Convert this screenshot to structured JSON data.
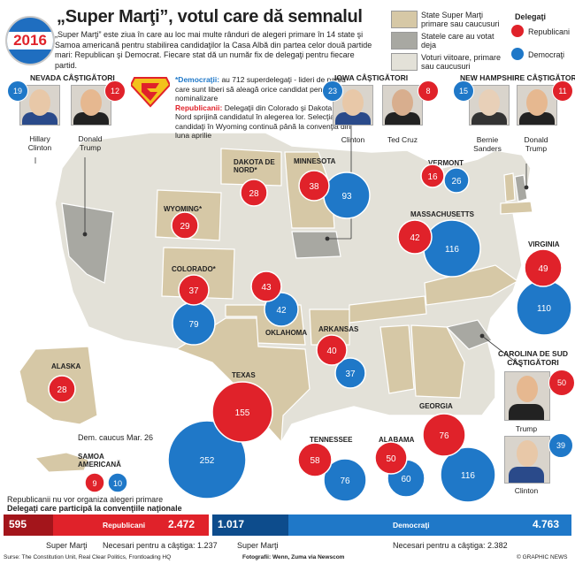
{
  "header": {
    "year_badge": "2016",
    "title": "„Super Marţi”, votul care dă semnalul",
    "intro": "„Super Marţi” este ziua în care au loc mai multe rânduri de alegeri primare în 14 state şi Samoa americană pentru stabilirea candidaţilor la Casa Albă din partea celor două partide mari: Republican şi Democrat. Fiecare stat dă un număr fix de delegaţi pentru fiecare partid."
  },
  "legend": {
    "states": [
      {
        "label": "State Super Marţi primare sau caucusuri",
        "color": "#d6c8a6"
      },
      {
        "label": "Statele care au votat deja",
        "color": "#a8a8a2"
      },
      {
        "label": "Voturi viitoare, primare sau caucusuri",
        "color": "#e3e1d8"
      }
    ],
    "delegates_title": "Delegaţi",
    "republicans": "Republicani",
    "democrats": "Democraţi",
    "rep_color": "#e0222a",
    "dem_color": "#1f78c8"
  },
  "notes": {
    "dem_label": "*Democraţii:",
    "dem_text": "au 712 superdelegaţi - lideri de partid care sunt liberi să aleagă orice candidat pentru nominalizare",
    "rep_label": "Republicanii:",
    "rep_text": "Delegaţii din Colorado şi Dakota de Nord sprijină candidatul în alegerea lor. Selecţia de candidaţi în Wyoming continuă până la convenţia din luna aprilie"
  },
  "winners": {
    "nevada": {
      "header": "NEVADA CÂŞTIGĂTORI",
      "dem_num": "19",
      "rep_num": "12",
      "dem_name": "Hillary Clinton",
      "rep_name": "Donald Trump"
    },
    "iowa": {
      "header": "IOWA CÂŞTIGĂTORI",
      "dem_num": "23",
      "rep_num": "8",
      "dem_name": "Clinton",
      "rep_name": "Ted Cruz"
    },
    "nh": {
      "header": "NEW HAMPSHIRE CÂŞTIGĂTORI",
      "dem_num": "15",
      "rep_num": "11",
      "dem_name": "Bernie Sanders",
      "rep_name": "Donald Trump"
    },
    "sc": {
      "header": "CAROLINA DE SUD CÂŞTIGĂTORI",
      "rep_num": "50",
      "rep_name": "Trump",
      "dem_num": "39",
      "dem_name": "Clinton"
    }
  },
  "states": {
    "dakota": {
      "name": "DAKOTA DE NORD*",
      "rep": "28"
    },
    "minnesota": {
      "name": "MINNESOTA",
      "rep": "38",
      "dem": "93"
    },
    "vermont": {
      "name": "VERMONT",
      "rep": "16",
      "dem": "26"
    },
    "wyoming": {
      "name": "WYOMING*",
      "rep": "29"
    },
    "massachusetts": {
      "name": "MASSACHUSETTS",
      "rep": "42",
      "dem": "116"
    },
    "colorado": {
      "name": "COLORADO*",
      "rep": "37",
      "dem": "79"
    },
    "oklahoma": {
      "name": "OKLAHOMA",
      "rep": "43",
      "dem": "42"
    },
    "virginia": {
      "name": "VIRGINIA",
      "rep": "49",
      "dem": "110"
    },
    "arkansas": {
      "name": "ARKANSAS",
      "rep": "40",
      "dem": "37"
    },
    "alaska": {
      "name": "ALASKA",
      "rep": "28",
      "note": "Dem. caucus Mar. 26"
    },
    "texas": {
      "name": "TEXAS",
      "rep": "155",
      "dem": "252"
    },
    "tennessee": {
      "name": "TENNESSEE",
      "rep": "58",
      "dem": "76"
    },
    "alabama": {
      "name": "ALABAMA",
      "rep": "50",
      "dem": "60"
    },
    "georgia": {
      "name": "GEORGIA",
      "rep": "76",
      "dem": "116"
    },
    "samoa": {
      "name": "SAMOA AMERICANĂ",
      "rep": "9",
      "dem": "10",
      "note": "Republicanii nu vor organiza alegeri primare"
    }
  },
  "convention": {
    "title": "Delegaţi care participă la convenţiile naţionale",
    "rep_super": "595",
    "rep_label": "Republicani",
    "rep_total": "2.472",
    "rep_super_label": "Super Marţi",
    "rep_needed": "Necesari pentru a câştiga: 1.237",
    "dem_super": "1.017",
    "dem_label": "Democraţi",
    "dem_total": "4.763",
    "dem_super_label": "Super Marţi",
    "dem_needed": "Necesari pentru a câştiga: 2.382",
    "rep_super_fraction": 0.241,
    "dem_super_fraction": 0.213
  },
  "footer": {
    "sources": "Surse: The Constitution Unit, Real Clear Politics, Frontloading HQ",
    "photos": "Fotografii: Wenn, Zuma via Newscom",
    "credit": "© GRAPHIC NEWS"
  }
}
